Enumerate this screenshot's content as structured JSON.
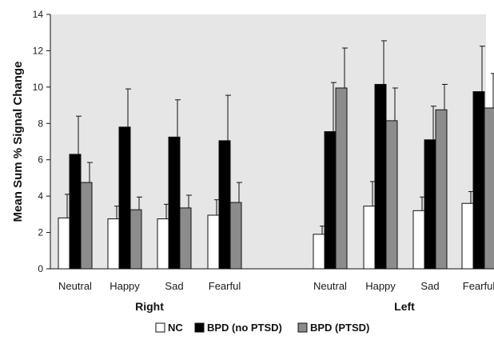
{
  "chart_data": {
    "type": "bar",
    "ylabel": "Mean Sum % Signal Change",
    "ylim": [
      0,
      14
    ],
    "yticks": [
      "0",
      "2",
      "4",
      "6",
      "8",
      "10",
      "12",
      "14"
    ],
    "groups": [
      {
        "label": "Right",
        "categories": [
          "Neutral",
          "Happy",
          "Sad",
          "Fearful"
        ]
      },
      {
        "label": "Left",
        "categories": [
          "Neutral",
          "Happy",
          "Sad",
          "Fearful"
        ]
      }
    ],
    "series": [
      {
        "name": "NC",
        "color": "#ffffff",
        "values": [
          2.8,
          2.75,
          2.75,
          2.95,
          1.9,
          3.45,
          3.2,
          3.6
        ],
        "errors": [
          1.3,
          0.7,
          0.8,
          0.85,
          0.45,
          1.35,
          0.75,
          0.65
        ]
      },
      {
        "name": "BPD (no PTSD)",
        "color": "#000000",
        "values": [
          6.3,
          7.8,
          7.25,
          7.05,
          7.55,
          10.15,
          7.1,
          9.75
        ],
        "errors": [
          2.1,
          2.1,
          2.05,
          2.5,
          2.7,
          2.4,
          1.85,
          2.5
        ]
      },
      {
        "name": "BPD (PTSD)",
        "color": "#8c8c8c",
        "values": [
          4.75,
          3.25,
          3.35,
          3.65,
          9.95,
          8.15,
          8.75,
          8.85
        ],
        "errors": [
          1.1,
          0.7,
          0.7,
          1.1,
          2.2,
          1.8,
          1.4,
          1.9
        ]
      }
    ],
    "plot_background": "#e6e6e6",
    "grid": false,
    "legend_position": "bottom"
  }
}
